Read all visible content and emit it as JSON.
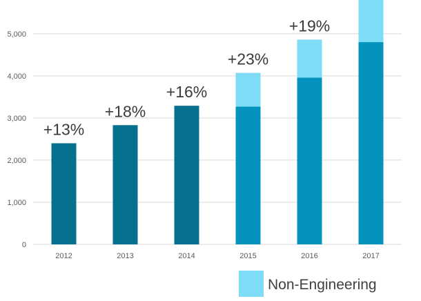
{
  "chart_data": {
    "type": "bar",
    "stacked": true,
    "categories": [
      "2012",
      "2013",
      "2014",
      "2015",
      "2016",
      "2017"
    ],
    "series": [
      {
        "values": [
          2400,
          2830,
          3290,
          3270,
          3960,
          4800
        ],
        "color": "#0678a0"
      },
      {
        "name": "Non-Engineering",
        "values": [
          0,
          0,
          0,
          800,
          900,
          1100
        ],
        "color": "#7fdcf7"
      }
    ],
    "base_colors_by_category": [
      "#06718f",
      "#06718f",
      "#06718f",
      "#0393bd",
      "#0393bd",
      "#0393bd"
    ],
    "growth_labels": [
      "+13%",
      "+18%",
      "+16%",
      "+23%",
      "+19%",
      ""
    ],
    "yticks": [
      0,
      1000,
      2000,
      3000,
      4000,
      5000
    ],
    "ytick_labels": [
      "0",
      "1,000",
      "2,000",
      "3,000",
      "4,000",
      "5,000"
    ],
    "ylim": [
      0,
      5800
    ],
    "grid": true,
    "legend": {
      "position": "bottom-right",
      "entries": [
        "Non-Engineering"
      ]
    },
    "title": "",
    "xlabel": "",
    "ylabel": ""
  }
}
